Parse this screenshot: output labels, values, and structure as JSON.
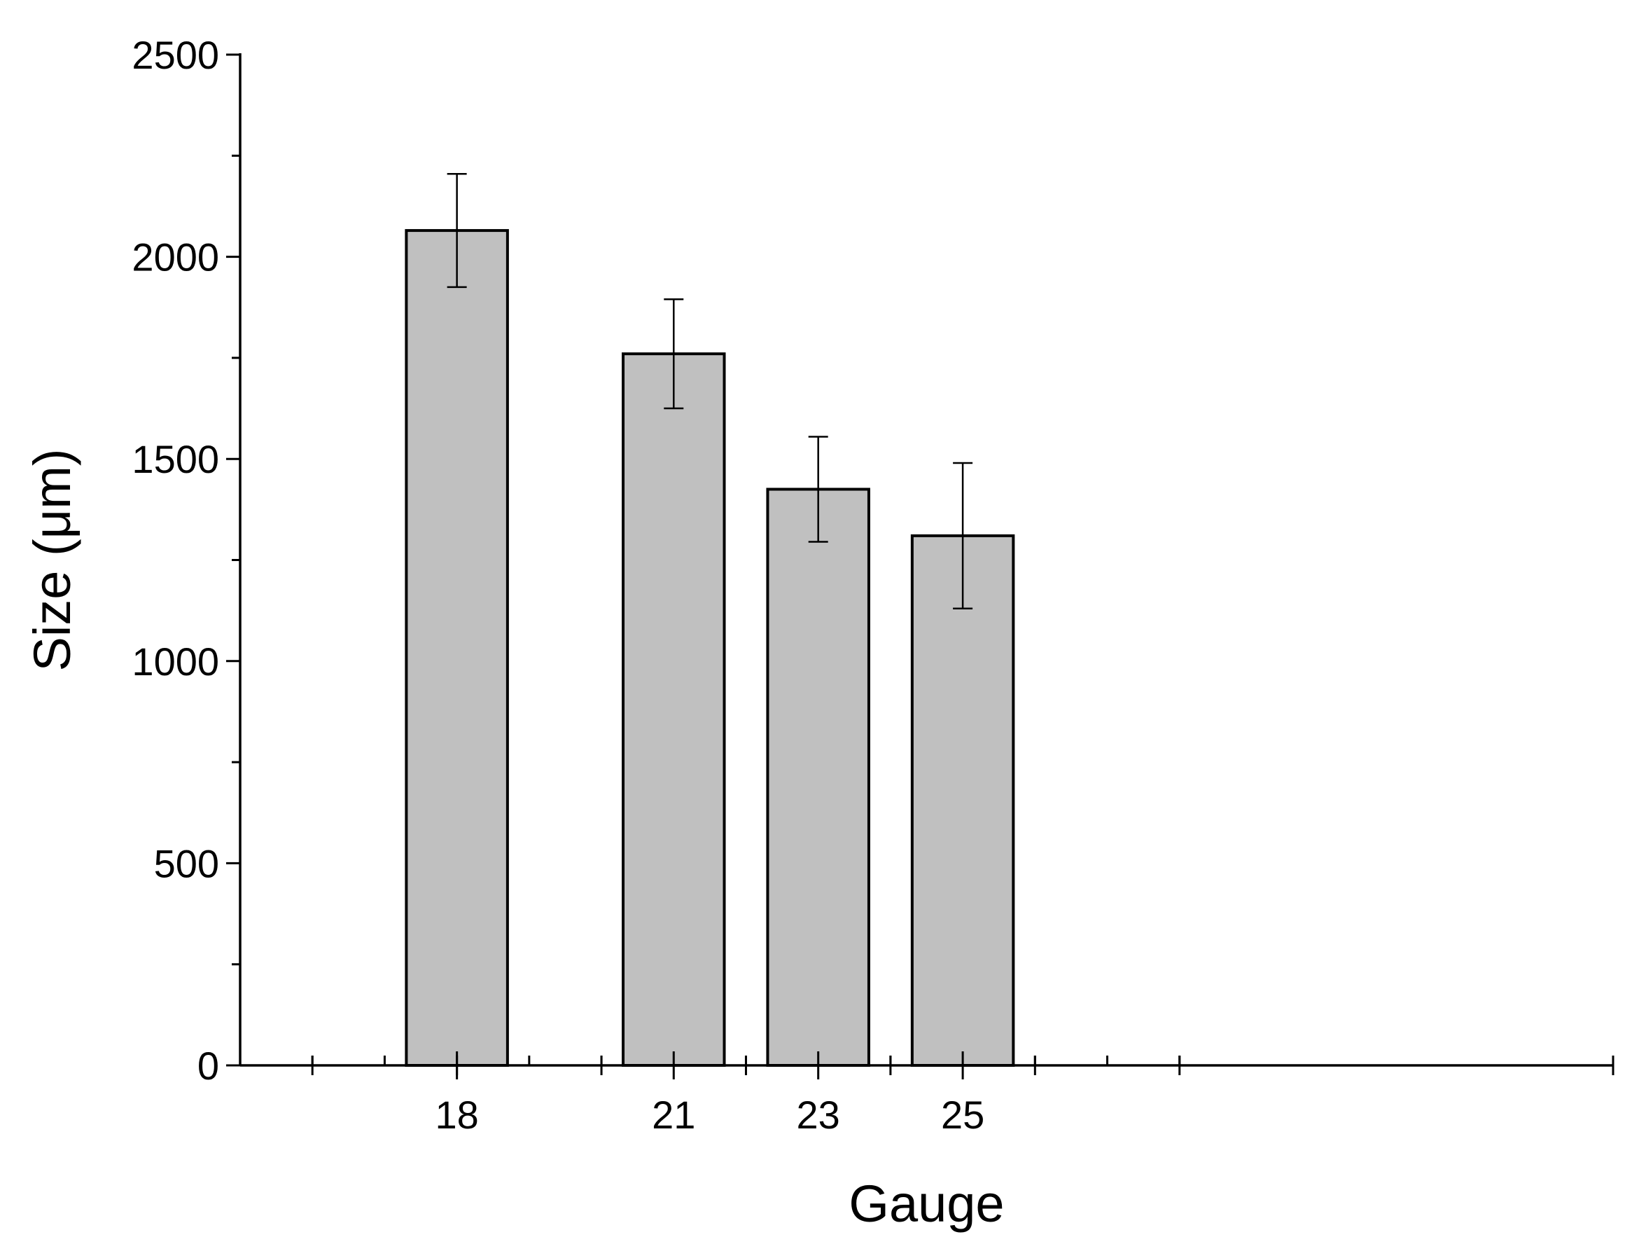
{
  "chart_data": {
    "type": "bar",
    "title": "",
    "xlabel": "Gauge",
    "ylabel": "Size (μm)",
    "x_range": [
      15,
      34
    ],
    "ylim": [
      0,
      2500
    ],
    "y_major_ticks": [
      0,
      500,
      1000,
      1500,
      2000,
      2500
    ],
    "y_minor_step": 250,
    "x_major_ticks": [
      18,
      21,
      23,
      25
    ],
    "x_minor_ticks": [
      16,
      17,
      19,
      20,
      22,
      24,
      26,
      27,
      28
    ],
    "x_pattern_ticks": [
      16,
      18,
      20,
      22,
      24,
      26,
      28
    ],
    "x_tick_labels": [
      "18",
      "21",
      "23",
      "25"
    ],
    "bar_width": 1.4,
    "grid": false,
    "legend": "none",
    "bar_color": "#c0c0c0",
    "series": [
      {
        "x": [
          18,
          21,
          23,
          25
        ],
        "values": [
          2065,
          1760,
          1425,
          1310
        ],
        "error": [
          140,
          135,
          130,
          180
        ]
      }
    ]
  }
}
